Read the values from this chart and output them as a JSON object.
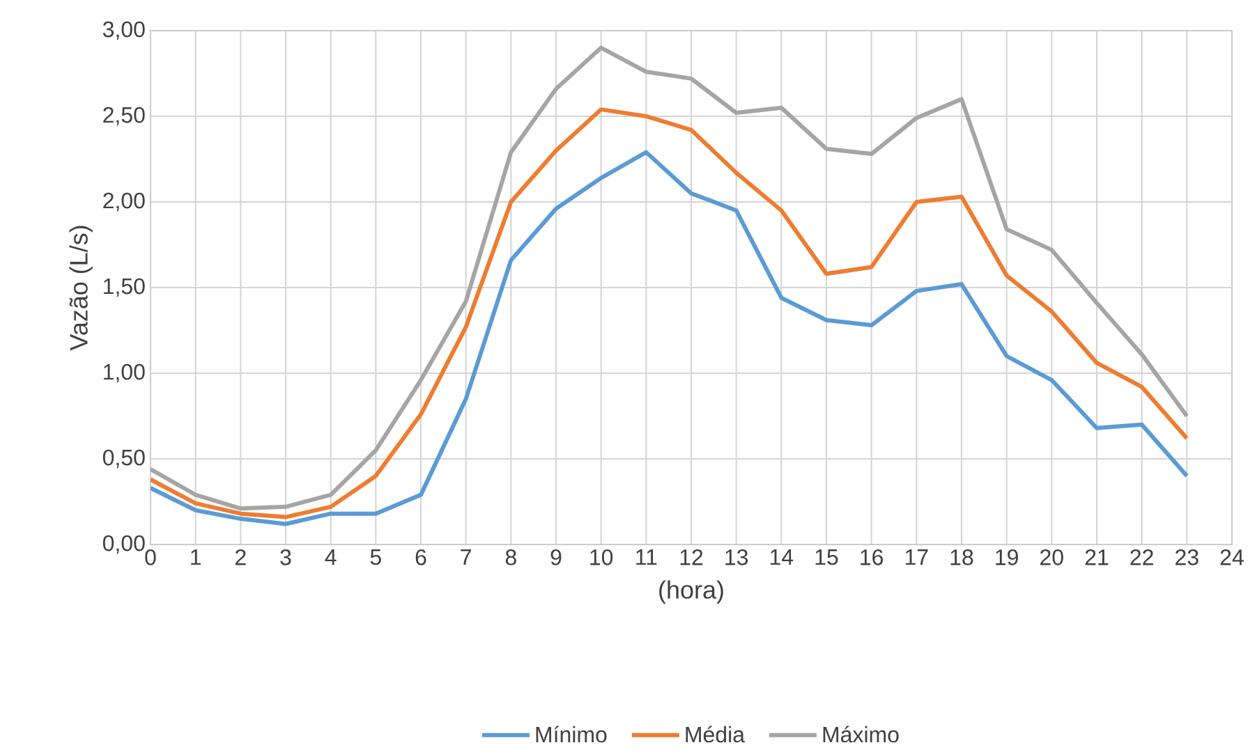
{
  "chart_data": {
    "type": "line",
    "xlabel": "(hora)",
    "ylabel": "Vazão (L/s)",
    "x": [
      0,
      1,
      2,
      3,
      4,
      5,
      6,
      7,
      8,
      9,
      10,
      11,
      12,
      13,
      14,
      15,
      16,
      17,
      18,
      19,
      20,
      21,
      22,
      23
    ],
    "xlim": [
      0,
      24
    ],
    "xticks": [
      0,
      1,
      2,
      3,
      4,
      5,
      6,
      7,
      8,
      9,
      10,
      11,
      12,
      13,
      14,
      15,
      16,
      17,
      18,
      19,
      20,
      21,
      22,
      23,
      24
    ],
    "ylim": [
      0,
      3
    ],
    "yticks": [
      {
        "value": 0,
        "label": "0,00"
      },
      {
        "value": 0.5,
        "label": "0,50"
      },
      {
        "value": 1,
        "label": "1,00"
      },
      {
        "value": 1.5,
        "label": "1,50"
      },
      {
        "value": 2,
        "label": "2,00"
      },
      {
        "value": 2.5,
        "label": "2,50"
      },
      {
        "value": 3,
        "label": "3,00"
      }
    ],
    "grid": true,
    "legend": "bottom",
    "series": [
      {
        "name": "Mínimo",
        "color": "#5b9bd5",
        "values": [
          0.33,
          0.2,
          0.15,
          0.12,
          0.18,
          0.18,
          0.29,
          0.85,
          1.66,
          1.96,
          2.14,
          2.29,
          2.05,
          1.95,
          1.44,
          1.31,
          1.28,
          1.48,
          1.52,
          1.1,
          0.96,
          0.68,
          0.7,
          0.4
        ]
      },
      {
        "name": "Média",
        "color": "#ed7d31",
        "values": [
          0.38,
          0.24,
          0.18,
          0.16,
          0.22,
          0.4,
          0.76,
          1.27,
          2.0,
          2.3,
          2.54,
          2.5,
          2.42,
          2.17,
          1.95,
          1.58,
          1.62,
          2.0,
          2.03,
          1.57,
          1.36,
          1.06,
          0.92,
          0.62
        ]
      },
      {
        "name": "Máximo",
        "color": "#a5a5a5",
        "values": [
          0.44,
          0.29,
          0.21,
          0.22,
          0.29,
          0.55,
          0.96,
          1.42,
          2.29,
          2.66,
          2.9,
          2.76,
          2.72,
          2.52,
          2.55,
          2.31,
          2.28,
          2.49,
          2.6,
          1.84,
          1.72,
          1.41,
          1.11,
          0.75
        ]
      }
    ]
  }
}
